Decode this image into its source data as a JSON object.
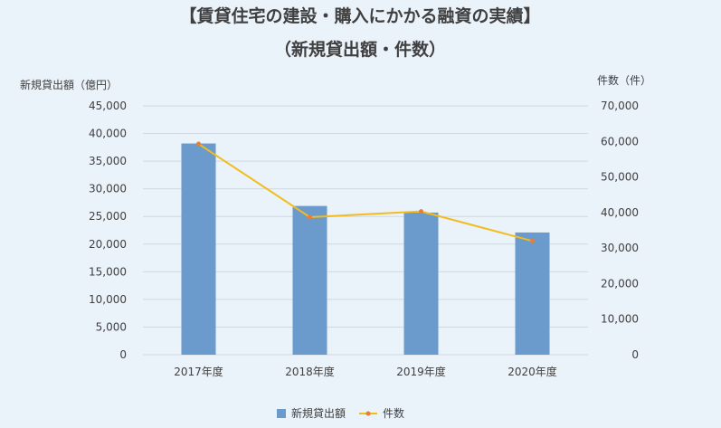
{
  "chart_data": {
    "type": "bar",
    "title": "【賃貸住宅の建設・購入にかかる融資の実績】",
    "subtitle": "（新規貸出額・件数）",
    "categories": [
      "2017年度",
      "2018年度",
      "2019年度",
      "2020年度"
    ],
    "ylabel_left": "新規貸出額（億円）",
    "ylabel_right": "件数（件）",
    "ylim_left": [
      0,
      45000
    ],
    "ylim_right": [
      0,
      70000
    ],
    "yticks_left": [
      "0",
      "5,000",
      "10,000",
      "15,000",
      "20,000",
      "25,000",
      "30,000",
      "35,000",
      "40,000",
      "45,000"
    ],
    "yticks_right": [
      "0",
      "10,000",
      "20,000",
      "30,000",
      "40,000",
      "50,000",
      "60,000",
      "70,000"
    ],
    "grid": true,
    "legend_position": "bottom",
    "series": [
      {
        "name": "新規貸出額",
        "type": "bar",
        "axis": "left",
        "color": "#6a9bcc",
        "values": [
          38200,
          26900,
          25700,
          22100
        ]
      },
      {
        "name": "件数",
        "type": "line",
        "axis": "right",
        "color": "#f3bc1c",
        "marker_color": "#ed7d31",
        "values": [
          59300,
          38700,
          40300,
          32000
        ]
      }
    ]
  }
}
